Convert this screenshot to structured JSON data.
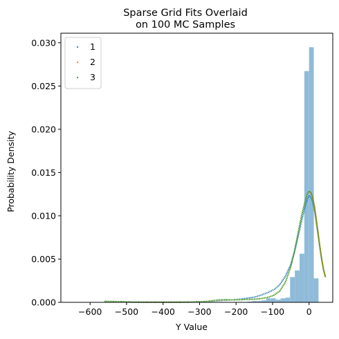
{
  "chart_data": {
    "type": "histogram_with_line_overlays",
    "title": [
      "Sparse Grid Fits Overlaid",
      "on 100 MC Samples"
    ],
    "xlabel": "Y Value",
    "ylabel": "Probability Density",
    "xlim": [
      -680,
      65
    ],
    "ylim": [
      0,
      0.0311
    ],
    "xticks": [
      -600,
      -500,
      -400,
      -300,
      -200,
      -100,
      0
    ],
    "xtick_labels": [
      "−600",
      "−500",
      "−400",
      "−300",
      "−200",
      "−100",
      "0"
    ],
    "yticks": [
      0,
      0.005,
      0.01,
      0.015,
      0.02,
      0.025,
      0.03
    ],
    "ytick_labels": [
      "0.000",
      "0.005",
      "0.010",
      "0.015",
      "0.020",
      "0.025",
      "0.030"
    ],
    "legend_position": "upper-left",
    "histogram": {
      "color": "#8fbbd9",
      "bins": [
        {
          "x0": -650,
          "x1": -637,
          "density": 2e-05
        },
        {
          "x0": -559,
          "x1": -546,
          "density": 2e-05
        },
        {
          "x0": -312,
          "x1": -299,
          "density": 2e-05
        },
        {
          "x0": -234,
          "x1": -221,
          "density": 2e-05
        },
        {
          "x0": -221,
          "x1": -208,
          "density": 2e-05
        },
        {
          "x0": -182,
          "x1": -169,
          "density": 4e-05
        },
        {
          "x0": -169,
          "x1": -156,
          "density": 8e-05
        },
        {
          "x0": -156,
          "x1": -143,
          "density": 0.00015
        },
        {
          "x0": -143,
          "x1": -130,
          "density": 0.00015
        },
        {
          "x0": -130,
          "x1": -117,
          "density": 0.00023
        },
        {
          "x0": -117,
          "x1": -104,
          "density": 0.00046
        },
        {
          "x0": -104,
          "x1": -91,
          "density": 0.00046
        },
        {
          "x0": -91,
          "x1": -78,
          "density": 0.00031
        },
        {
          "x0": -78,
          "x1": -65,
          "density": 0.00046
        },
        {
          "x0": -65,
          "x1": -52,
          "density": 0.00054
        },
        {
          "x0": -52,
          "x1": -39,
          "density": 0.00292
        },
        {
          "x0": -39,
          "x1": -26,
          "density": 0.00369
        },
        {
          "x0": -26,
          "x1": -13,
          "density": 0.00562
        },
        {
          "x0": -13,
          "x1": 0,
          "density": 0.02672
        },
        {
          "x0": 0,
          "x1": 13,
          "density": 0.02948
        },
        {
          "x0": 13,
          "x1": 26,
          "density": 0.00277
        }
      ]
    },
    "series": [
      {
        "name": "1",
        "color": "#1f77b4",
        "x": [
          -560,
          -520,
          -480,
          -440,
          -400,
          -360,
          -320,
          -280,
          -250,
          -230,
          -210,
          -190,
          -170,
          -150,
          -130,
          -110,
          -95,
          -80,
          -65,
          -50,
          -40,
          -30,
          -20,
          -10,
          -5,
          0,
          5,
          10,
          15,
          20,
          25,
          30,
          35,
          40,
          45
        ],
        "y": [
          6e-05,
          5e-05,
          2e-05,
          1e-05,
          1e-05,
          2e-05,
          3e-05,
          9e-05,
          0.0002,
          0.00024,
          0.00028,
          0.00037,
          0.00048,
          0.0006,
          0.00085,
          0.00118,
          0.0015,
          0.00205,
          0.003,
          0.0044,
          0.0058,
          0.0076,
          0.0095,
          0.0112,
          0.0119,
          0.0123,
          0.01215,
          0.0116,
          0.0106,
          0.0092,
          0.0077,
          0.0062,
          0.0048,
          0.0037,
          0.0029
        ]
      },
      {
        "name": "2",
        "color": "#ff7f0e",
        "x": [
          -560,
          -520,
          -480,
          -440,
          -400,
          -360,
          -320,
          -280,
          -250,
          -230,
          -210,
          -190,
          -170,
          -150,
          -130,
          -110,
          -95,
          -80,
          -65,
          -50,
          -40,
          -30,
          -20,
          -10,
          -5,
          0,
          5,
          10,
          15,
          20,
          25,
          30,
          35,
          40,
          45
        ],
        "y": [
          0.0001,
          8e-05,
          3e-05,
          2e-05,
          2e-05,
          2e-05,
          4e-05,
          0.0001,
          0.00026,
          0.0003,
          0.00028,
          0.0003,
          0.00033,
          0.00036,
          0.00044,
          0.0006,
          0.00084,
          0.0013,
          0.0023,
          0.0041,
          0.0059,
          0.008,
          0.0101,
          0.0118,
          0.0125,
          0.0128,
          0.01265,
          0.0121,
          0.011,
          0.0095,
          0.0079,
          0.0063,
          0.0049,
          0.0037,
          0.0029
        ]
      },
      {
        "name": "3",
        "color": "#2ca02c",
        "x": [
          -560,
          -520,
          -480,
          -440,
          -400,
          -360,
          -320,
          -280,
          -250,
          -230,
          -210,
          -190,
          -170,
          -150,
          -130,
          -110,
          -95,
          -80,
          -65,
          -50,
          -40,
          -30,
          -20,
          -10,
          -5,
          0,
          5,
          10,
          15,
          20,
          25,
          30,
          35,
          40,
          45
        ],
        "y": [
          0.00011,
          9e-05,
          3e-05,
          2e-05,
          2e-05,
          2e-05,
          4e-05,
          0.0001,
          0.00027,
          0.00031,
          0.00029,
          0.0003,
          0.00033,
          0.00036,
          0.00044,
          0.0006,
          0.00085,
          0.00132,
          0.00232,
          0.00412,
          0.00592,
          0.00802,
          0.01012,
          0.01182,
          0.01255,
          0.01285,
          0.0127,
          0.01213,
          0.01102,
          0.00952,
          0.00792,
          0.00632,
          0.00492,
          0.00372,
          0.00292
        ]
      }
    ]
  }
}
